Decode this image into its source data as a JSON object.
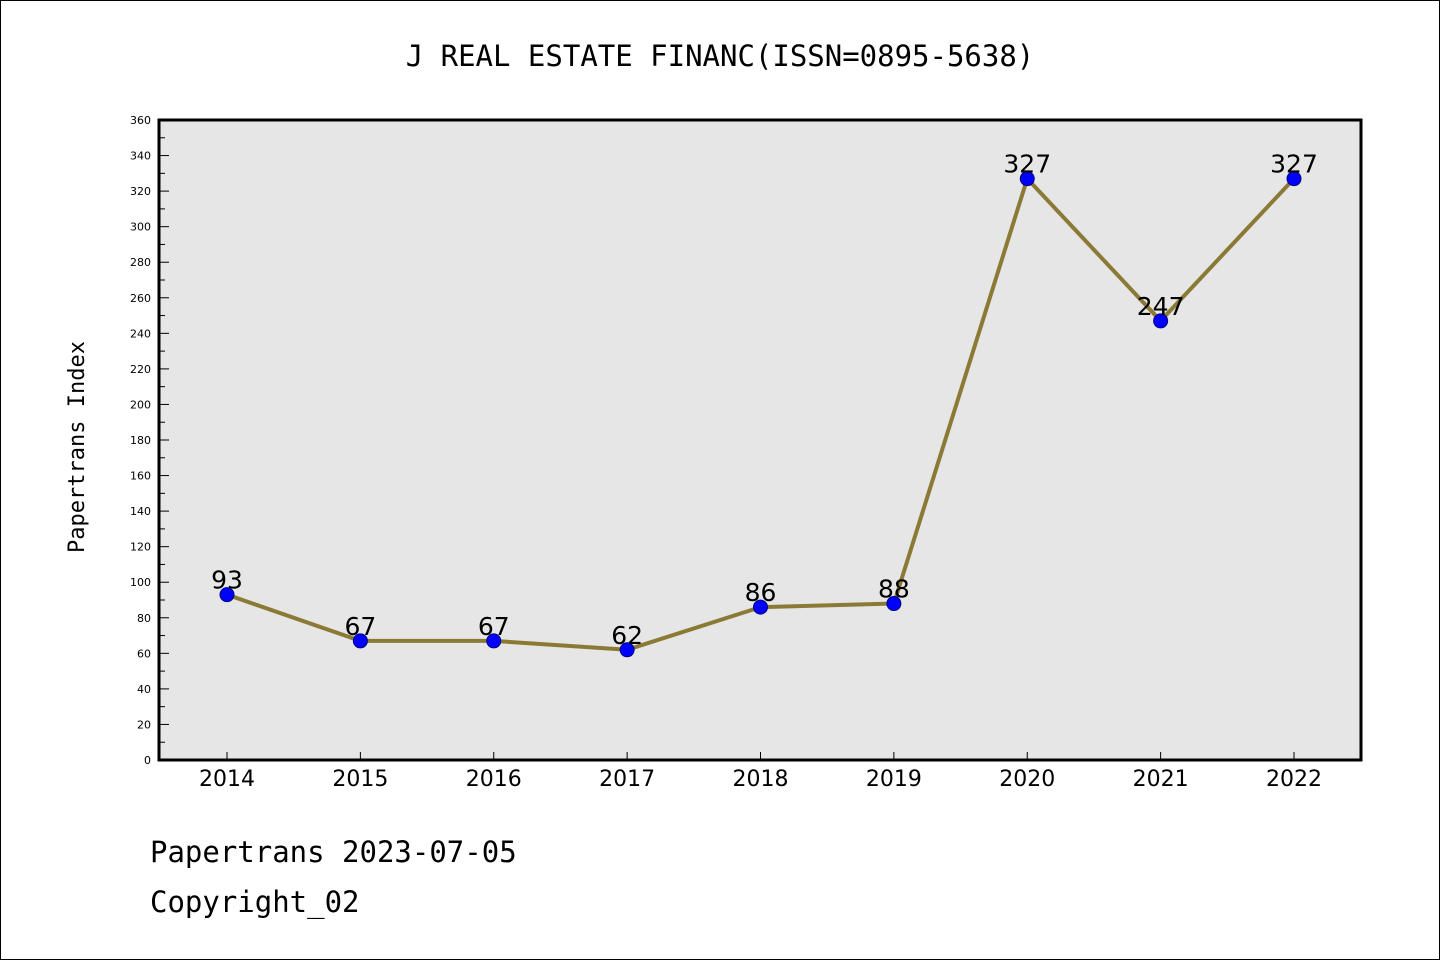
{
  "chart_data": {
    "type": "line",
    "title": "J REAL ESTATE FINANC(ISSN=0895-5638)",
    "xlabel": "",
    "ylabel": "Papertrans Index",
    "categories": [
      "2014",
      "2015",
      "2016",
      "2017",
      "2018",
      "2019",
      "2020",
      "2021",
      "2022"
    ],
    "series": [
      {
        "values": [
          93,
          67,
          67,
          62,
          86,
          88,
          327,
          247,
          327
        ]
      }
    ],
    "ylim": [
      0,
      360
    ],
    "y_major_step": 20,
    "y_minor_step": 10,
    "grid": false,
    "data_labels": true,
    "colors": {
      "line": "#8b7a35",
      "marker_fill": "#0000ff",
      "marker_edge": "#000080",
      "plot_background": "#e6e6e6"
    }
  },
  "footer": {
    "date_line": "Papertrans 2023-07-05",
    "copyright_line": "Copyright_02"
  }
}
